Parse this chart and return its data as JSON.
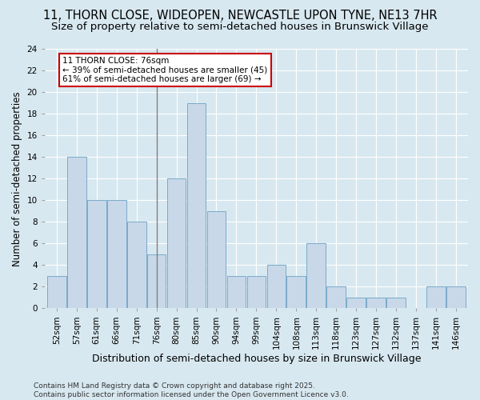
{
  "title": "11, THORN CLOSE, WIDEOPEN, NEWCASTLE UPON TYNE, NE13 7HR",
  "subtitle": "Size of property relative to semi-detached houses in Brunswick Village",
  "xlabel": "Distribution of semi-detached houses by size in Brunswick Village",
  "ylabel": "Number of semi-detached properties",
  "categories": [
    "52sqm",
    "57sqm",
    "61sqm",
    "66sqm",
    "71sqm",
    "76sqm",
    "80sqm",
    "85sqm",
    "90sqm",
    "94sqm",
    "99sqm",
    "104sqm",
    "108sqm",
    "113sqm",
    "118sqm",
    "123sqm",
    "127sqm",
    "132sqm",
    "137sqm",
    "141sqm",
    "146sqm"
  ],
  "values": [
    3,
    14,
    10,
    10,
    8,
    5,
    12,
    19,
    9,
    3,
    3,
    4,
    3,
    6,
    2,
    1,
    1,
    1,
    0,
    2,
    2
  ],
  "bar_color": "#c8d8e8",
  "bar_edge_color": "#7aaaca",
  "highlight_index": 5,
  "highlight_line_color": "#808080",
  "annotation_line1": "11 THORN CLOSE: 76sqm",
  "annotation_line2": "← 39% of semi-detached houses are smaller (45)",
  "annotation_line3": "61% of semi-detached houses are larger (69) →",
  "annotation_box_color": "#ffffff",
  "annotation_box_edge_color": "#cc0000",
  "ylim": [
    0,
    24
  ],
  "yticks": [
    0,
    2,
    4,
    6,
    8,
    10,
    12,
    14,
    16,
    18,
    20,
    22,
    24
  ],
  "background_color": "#d8e8f0",
  "plot_bg_color": "#d8e8f0",
  "footer_text": "Contains HM Land Registry data © Crown copyright and database right 2025.\nContains public sector information licensed under the Open Government Licence v3.0.",
  "title_fontsize": 10.5,
  "subtitle_fontsize": 9.5,
  "xlabel_fontsize": 9,
  "ylabel_fontsize": 8.5,
  "tick_fontsize": 7.5,
  "annotation_fontsize": 7.5,
  "footer_fontsize": 6.5
}
